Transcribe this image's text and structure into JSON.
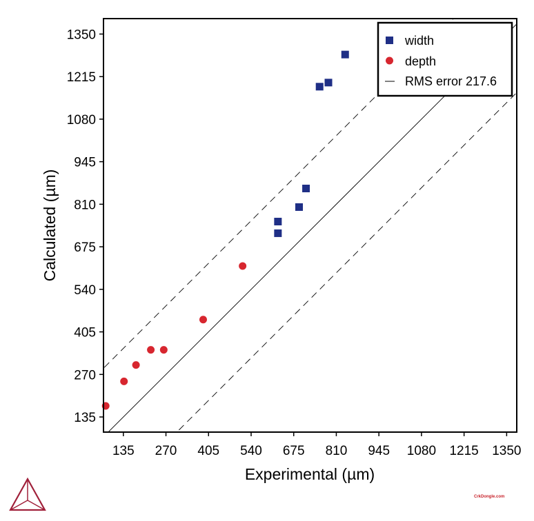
{
  "chart_data": {
    "type": "scatter",
    "title": "",
    "xlabel": "Experimental (µm)",
    "ylabel": "Calculated (µm)",
    "xlim": [
      72,
      1382
    ],
    "ylim": [
      87,
      1399
    ],
    "xticks": [
      135,
      270,
      405,
      540,
      675,
      810,
      945,
      1080,
      1215,
      1350
    ],
    "yticks": [
      135,
      270,
      405,
      540,
      675,
      810,
      945,
      1080,
      1215,
      1350
    ],
    "grid": false,
    "legend_position": "top-right",
    "series": [
      {
        "name": "width",
        "marker": "square",
        "color": "#1f2f86",
        "points": [
          [
            838,
            1285
          ],
          [
            785,
            1196
          ],
          [
            757,
            1183
          ],
          [
            714,
            860
          ],
          [
            692,
            801
          ],
          [
            625,
            755
          ],
          [
            625,
            718
          ]
        ]
      },
      {
        "name": "depth",
        "marker": "circle",
        "color": "#d7262f",
        "points": [
          [
            79,
            170
          ],
          [
            137,
            248
          ],
          [
            175,
            300
          ],
          [
            222,
            348
          ],
          [
            263,
            348
          ],
          [
            388,
            444
          ],
          [
            513,
            614
          ]
        ]
      }
    ],
    "reference_lines": [
      {
        "name": "identity",
        "style": "solid",
        "offset": 0
      },
      {
        "name": "RMS error 217.6",
        "style": "dashed",
        "offset": 217.6
      }
    ],
    "legend": [
      "width",
      "depth",
      "RMS error 217.6"
    ]
  },
  "footer": {
    "watermark": "CrkDongle.com",
    "logo": "thermo-calc-triangle-logo"
  }
}
